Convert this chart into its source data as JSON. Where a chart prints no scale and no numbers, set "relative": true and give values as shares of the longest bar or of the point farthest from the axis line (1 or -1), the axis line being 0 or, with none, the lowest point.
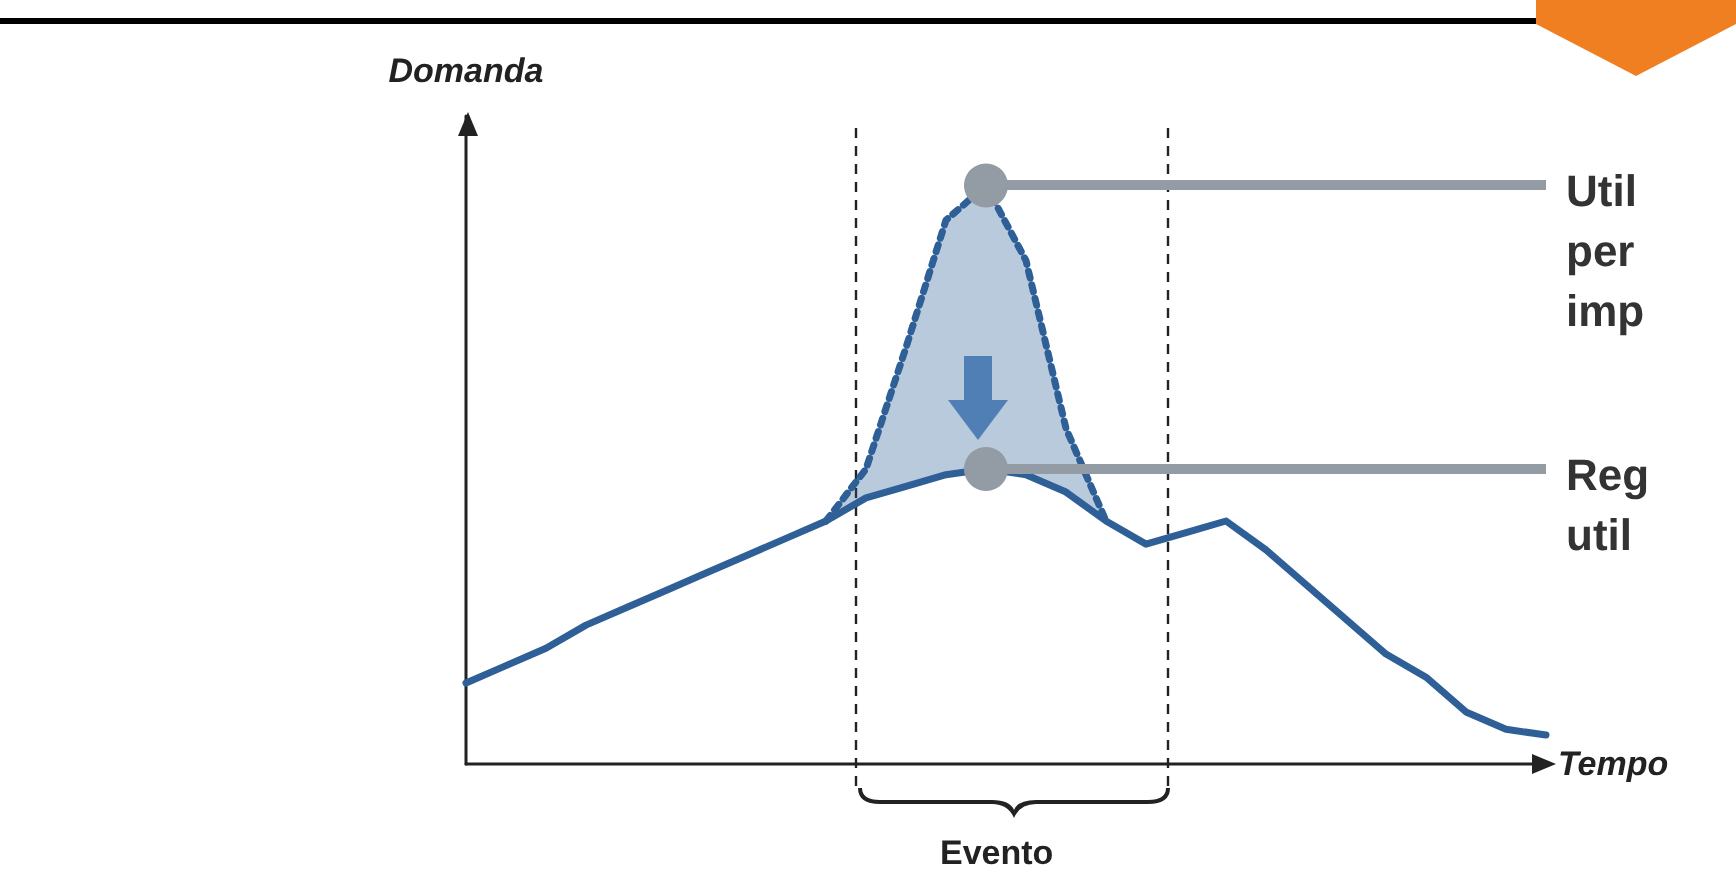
{
  "chart_data": {
    "type": "line",
    "relative": true,
    "xlabel": "Tempo",
    "ylabel": "Domanda",
    "marker": "none",
    "line_style": "solid",
    "categories": [
      null,
      null,
      null,
      null,
      null,
      null,
      null,
      null,
      null,
      null,
      null,
      null,
      null,
      null,
      null,
      null,
      null,
      null,
      null,
      null,
      null,
      null,
      null,
      null,
      null,
      null,
      null,
      null
    ],
    "series": [
      {
        "color": "#2f5f97",
        "values": [
          0.14,
          0.17,
          0.2,
          0.24,
          0.27,
          0.3,
          0.33,
          0.36,
          0.39,
          0.42,
          0.46,
          0.48,
          0.5,
          0.51,
          0.5,
          0.47,
          0.42,
          0.38,
          0.4,
          0.42,
          0.37,
          0.31,
          0.25,
          0.19,
          0.15,
          0.09,
          0.06,
          0.05
        ]
      },
      {
        "color": "#2f5f97",
        "line_style": "dotted",
        "values": [
          null,
          null,
          null,
          null,
          null,
          null,
          null,
          null,
          null,
          0.42,
          0.51,
          0.72,
          0.94,
          1,
          0.87,
          0.58,
          0.42,
          null,
          null,
          null,
          null,
          null,
          null,
          null,
          null,
          null,
          null,
          null
        ],
        "lower": [
          null,
          null,
          null,
          null,
          null,
          null,
          null,
          null,
          null,
          0.42,
          0.46,
          0.48,
          0.5,
          0.51,
          0.5,
          0.47,
          0.42,
          null,
          null,
          null,
          null,
          null,
          null,
          null,
          null,
          null,
          null,
          null
        ],
        "upper": [
          null,
          null,
          null,
          null,
          null,
          null,
          null,
          null,
          null,
          0.42,
          0.51,
          0.72,
          0.94,
          1,
          0.87,
          0.58,
          0.42,
          null,
          null,
          null,
          null,
          null,
          null,
          null,
          null,
          null,
          null,
          null
        ]
      }
    ],
    "ref_lines": [
      {
        "axis": "y",
        "value": 1,
        "label": "Util\nper\nimp",
        "color": "#939ba4"
      },
      {
        "axis": "y",
        "value": 0.51,
        "label": "Reg\nutil",
        "color": "#939ba4"
      }
    ],
    "annotations": [
      "Evento"
    ]
  }
}
